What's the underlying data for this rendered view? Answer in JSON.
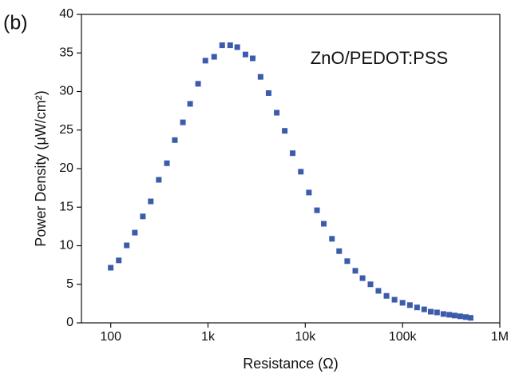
{
  "chart_data": {
    "type": "scatter",
    "panel_label": "(b)",
    "annotation": "ZnO/PEDOT:PSS",
    "x_label": "Resistance (Ω)",
    "y_label": "Power Density (μW/cm²)",
    "x_scale": "log",
    "color": "#3b5bab",
    "grid": false,
    "x": [
      100,
      121,
      146,
      177,
      214,
      258,
      312,
      378,
      456,
      552,
      655,
      791,
      940,
      1157,
      1399,
      1690,
      2000,
      2427,
      2880,
      3470,
      4200,
      5090,
      6150,
      7420,
      9000,
      10900,
      13200,
      15500,
      18800,
      22300,
      27000,
      32700,
      38800,
      46800,
      56500,
      68400,
      82700,
      100000,
      119000,
      141000,
      167000,
      195000,
      226000,
      263000,
      302000,
      343000,
      392000,
      448000,
      501000
    ],
    "values": [
      7.15,
      8.1,
      10.05,
      11.7,
      13.8,
      15.75,
      18.55,
      20.7,
      23.7,
      26.0,
      28.4,
      31.0,
      34.0,
      34.5,
      36.0,
      36.0,
      35.75,
      34.8,
      34.3,
      31.9,
      29.8,
      27.25,
      24.9,
      22.0,
      19.6,
      16.9,
      14.6,
      12.85,
      10.9,
      9.3,
      8.0,
      6.75,
      5.8,
      5.0,
      4.15,
      3.5,
      3.0,
      2.6,
      2.3,
      2.0,
      1.75,
      1.45,
      1.35,
      1.15,
      1.05,
      0.95,
      0.85,
      0.75,
      0.65
    ],
    "xlim": [
      50,
      1000000
    ],
    "xticks": [
      {
        "value": 100,
        "label": "100"
      },
      {
        "value": 1000,
        "label": "1k"
      },
      {
        "value": 10000,
        "label": "10k"
      },
      {
        "value": 100000,
        "label": "100k"
      },
      {
        "value": 1000000,
        "label": "1M"
      }
    ],
    "ylim": [
      0,
      40
    ],
    "yticks": [
      0,
      5,
      10,
      15,
      20,
      25,
      30,
      35,
      40
    ]
  }
}
